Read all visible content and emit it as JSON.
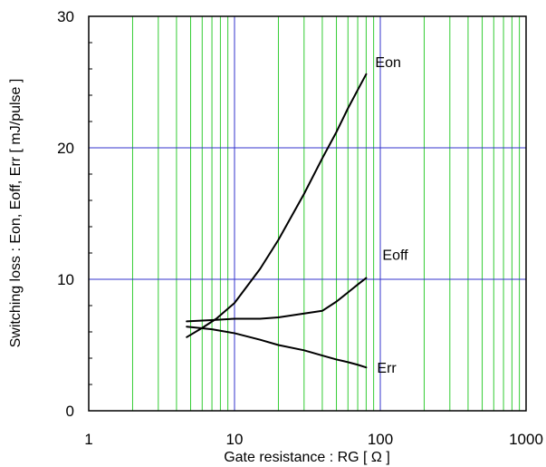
{
  "chart_data": {
    "type": "line",
    "xlabel": "Gate resistance : RG [ Ω ]",
    "ylabel": "Switching loss : Eon, Eoff, Err [ mJ/pulse ]",
    "xscale": "log",
    "xlim": [
      1,
      1000
    ],
    "ylim": [
      0,
      30
    ],
    "x_ticks": [
      {
        "value": 1,
        "label": "1"
      },
      {
        "value": 10,
        "label": "10"
      },
      {
        "value": 100,
        "label": "100"
      },
      {
        "value": 1000,
        "label": "1000"
      }
    ],
    "y_ticks": [
      {
        "value": 0,
        "label": "0"
      },
      {
        "value": 10,
        "label": "10"
      },
      {
        "value": 20,
        "label": "20"
      },
      {
        "value": 30,
        "label": "30"
      }
    ],
    "major_gridline_color": "#3333cc",
    "minor_gridline_color": "#33cc33",
    "series": [
      {
        "name": "Eon",
        "x": [
          4.7,
          6,
          7.5,
          10,
          15,
          20,
          30,
          40,
          50,
          60,
          70,
          80
        ],
        "y": [
          5.6,
          6.3,
          7.0,
          8.2,
          10.8,
          13.0,
          16.5,
          19.2,
          21.2,
          23.0,
          24.4,
          25.6
        ]
      },
      {
        "name": "Eoff",
        "x": [
          4.7,
          7,
          10,
          15,
          20,
          30,
          40,
          50,
          60,
          70,
          80
        ],
        "y": [
          6.8,
          6.9,
          7.0,
          7.0,
          7.1,
          7.4,
          7.6,
          8.3,
          9.0,
          9.6,
          10.1
        ]
      },
      {
        "name": "Err",
        "x": [
          4.7,
          7,
          10,
          15,
          20,
          30,
          40,
          50,
          60,
          70,
          80
        ],
        "y": [
          6.4,
          6.2,
          5.9,
          5.4,
          5.0,
          4.6,
          4.2,
          3.9,
          3.7,
          3.5,
          3.3
        ]
      }
    ]
  }
}
